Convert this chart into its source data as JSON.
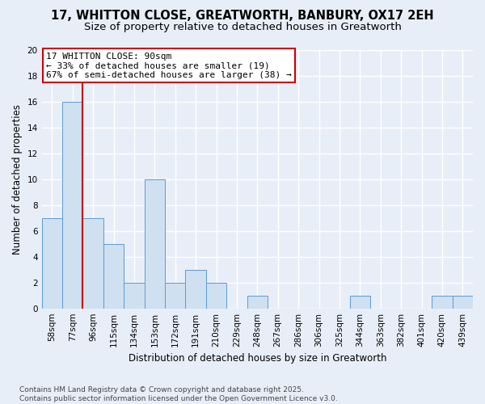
{
  "title1": "17, WHITTON CLOSE, GREATWORTH, BANBURY, OX17 2EH",
  "title2": "Size of property relative to detached houses in Greatworth",
  "xlabel": "Distribution of detached houses by size in Greatworth",
  "ylabel": "Number of detached properties",
  "categories": [
    "58sqm",
    "77sqm",
    "96sqm",
    "115sqm",
    "134sqm",
    "153sqm",
    "172sqm",
    "191sqm",
    "210sqm",
    "229sqm",
    "248sqm",
    "267sqm",
    "286sqm",
    "306sqm",
    "325sqm",
    "344sqm",
    "363sqm",
    "382sqm",
    "401sqm",
    "420sqm",
    "439sqm"
  ],
  "values": [
    7,
    16,
    7,
    5,
    2,
    10,
    2,
    3,
    2,
    0,
    1,
    0,
    0,
    0,
    0,
    1,
    0,
    0,
    0,
    1,
    1
  ],
  "bar_color": "#cfe0f0",
  "bar_edge_color": "#5b9bd5",
  "annotation_line1": "17 WHITTON CLOSE: 90sqm",
  "annotation_line2": "← 33% of detached houses are smaller (19)",
  "annotation_line3": "67% of semi-detached houses are larger (38) →",
  "annotation_box_color": "#ffffff",
  "annotation_box_edge": "#cc0000",
  "vline_color": "#cc0000",
  "vline_x": 1.5,
  "yticks": [
    0,
    2,
    4,
    6,
    8,
    10,
    12,
    14,
    16,
    18,
    20
  ],
  "ylim": [
    0,
    20
  ],
  "background_color": "#e8eef8",
  "plot_background": "#e8eef8",
  "grid_color": "#ffffff",
  "footnote": "Contains HM Land Registry data © Crown copyright and database right 2025.\nContains public sector information licensed under the Open Government Licence v3.0.",
  "title_fontsize": 10.5,
  "subtitle_fontsize": 9.5,
  "xlabel_fontsize": 8.5,
  "ylabel_fontsize": 8.5,
  "tick_fontsize": 7.5,
  "annot_fontsize": 8,
  "footnote_fontsize": 6.5
}
